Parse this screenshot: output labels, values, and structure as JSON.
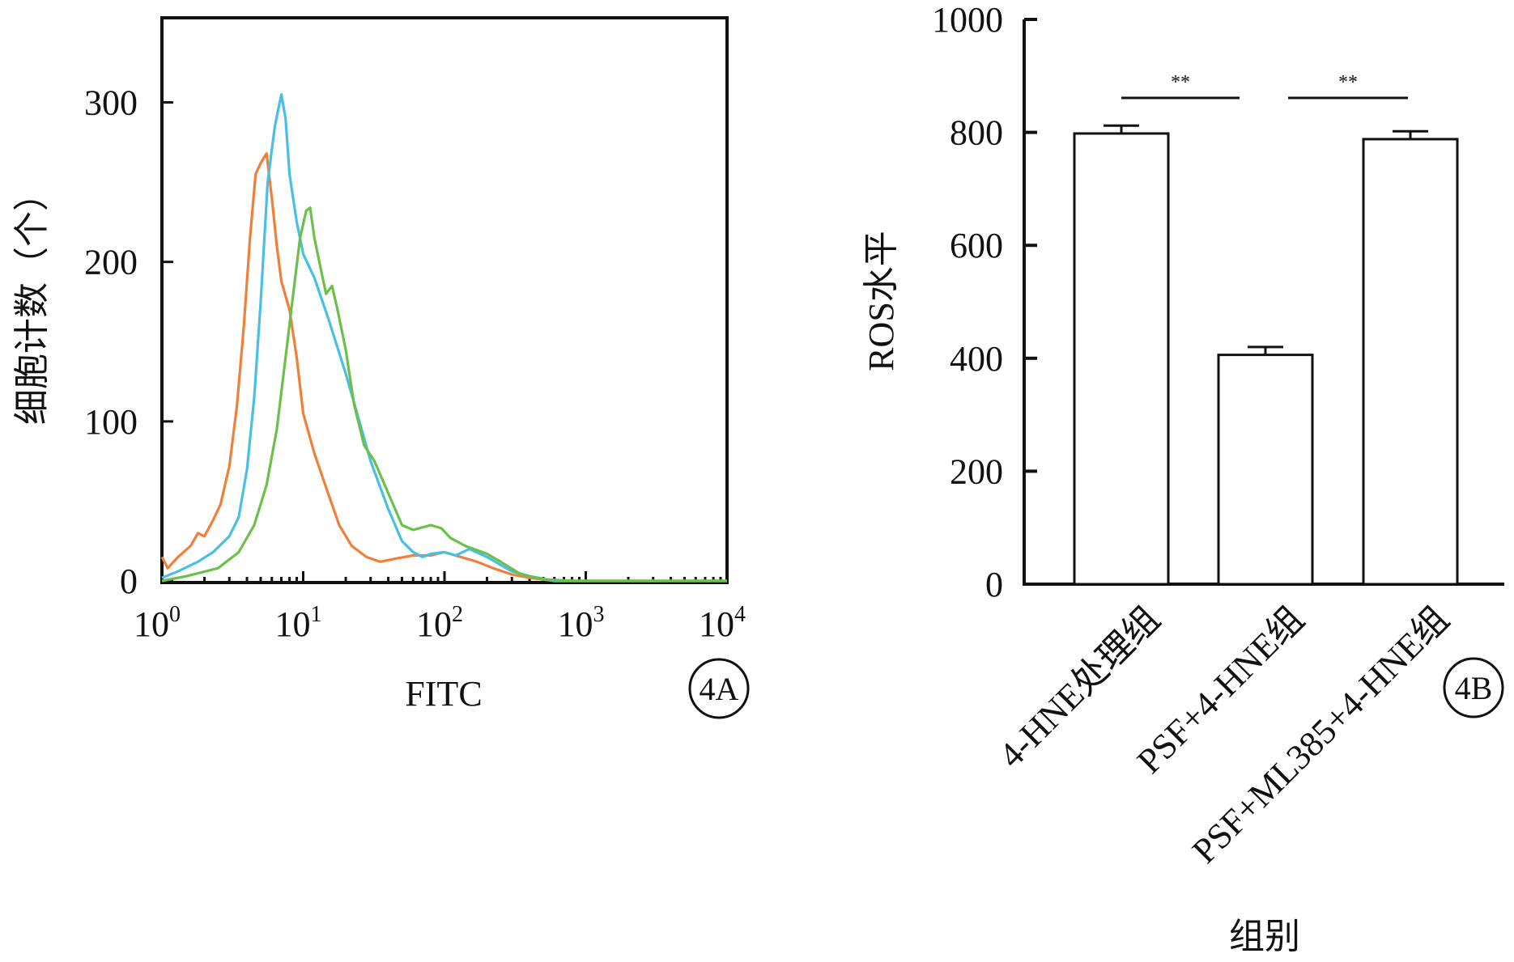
{
  "chart_data": [
    {
      "panel": "4A",
      "type": "line",
      "xscale": "log",
      "xlabel": "FITC",
      "ylabel": "细胞计数（个）",
      "xlim": [
        1,
        10000
      ],
      "ylim": [
        0,
        350
      ],
      "x_tick_labels": [
        {
          "base": "10",
          "exp": "0"
        },
        {
          "base": "10",
          "exp": "1"
        },
        {
          "base": "10",
          "exp": "2"
        },
        {
          "base": "10",
          "exp": "3"
        },
        {
          "base": "10",
          "exp": "4"
        }
      ],
      "y_tick_labels": [
        "0",
        "100",
        "200",
        "300"
      ],
      "series": [
        {
          "color": "#f07f3c",
          "points": [
            [
              1,
              15
            ],
            [
              1.1,
              8
            ],
            [
              1.3,
              15
            ],
            [
              1.6,
              22
            ],
            [
              1.8,
              30
            ],
            [
              2.0,
              28
            ],
            [
              2.3,
              38
            ],
            [
              2.6,
              48
            ],
            [
              3.0,
              72
            ],
            [
              3.4,
              110
            ],
            [
              3.8,
              160
            ],
            [
              4.2,
              215
            ],
            [
              4.6,
              255
            ],
            [
              5.0,
              262
            ],
            [
              5.5,
              268
            ],
            [
              6.0,
              240
            ],
            [
              6.5,
              210
            ],
            [
              7.0,
              188
            ],
            [
              8.0,
              170
            ],
            [
              9.0,
              140
            ],
            [
              10,
              105
            ],
            [
              12,
              80
            ],
            [
              15,
              55
            ],
            [
              18,
              35
            ],
            [
              22,
              22
            ],
            [
              28,
              15
            ],
            [
              35,
              12
            ],
            [
              45,
              14
            ],
            [
              60,
              16
            ],
            [
              80,
              16
            ],
            [
              100,
              18
            ],
            [
              130,
              15
            ],
            [
              170,
              12
            ],
            [
              220,
              8
            ],
            [
              300,
              4
            ],
            [
              400,
              2
            ],
            [
              600,
              0
            ],
            [
              10000,
              0
            ]
          ]
        },
        {
          "color": "#48bfe3",
          "points": [
            [
              1,
              2
            ],
            [
              1.3,
              6
            ],
            [
              1.8,
              12
            ],
            [
              2.3,
              18
            ],
            [
              3.0,
              28
            ],
            [
              3.5,
              40
            ],
            [
              4.0,
              70
            ],
            [
              4.5,
              115
            ],
            [
              5.0,
              175
            ],
            [
              5.6,
              250
            ],
            [
              6.3,
              285
            ],
            [
              7.0,
              305
            ],
            [
              7.5,
              290
            ],
            [
              8.0,
              255
            ],
            [
              9.0,
              225
            ],
            [
              10,
              205
            ],
            [
              12,
              190
            ],
            [
              15,
              165
            ],
            [
              20,
              130
            ],
            [
              25,
              100
            ],
            [
              30,
              75
            ],
            [
              40,
              45
            ],
            [
              50,
              25
            ],
            [
              60,
              18
            ],
            [
              70,
              15
            ],
            [
              80,
              17
            ],
            [
              100,
              18
            ],
            [
              120,
              16
            ],
            [
              150,
              20
            ],
            [
              200,
              15
            ],
            [
              300,
              6
            ],
            [
              400,
              3
            ],
            [
              600,
              0
            ],
            [
              10000,
              0
            ]
          ]
        },
        {
          "color": "#6cc04a",
          "points": [
            [
              1,
              0
            ],
            [
              1.5,
              3
            ],
            [
              2.5,
              8
            ],
            [
              3.5,
              18
            ],
            [
              4.5,
              35
            ],
            [
              5.5,
              60
            ],
            [
              6.5,
              95
            ],
            [
              7.5,
              140
            ],
            [
              8.5,
              180
            ],
            [
              9.5,
              215
            ],
            [
              10.5,
              232
            ],
            [
              11.2,
              234
            ],
            [
              12,
              215
            ],
            [
              13,
              200
            ],
            [
              14.5,
              180
            ],
            [
              16,
              185
            ],
            [
              17.5,
              170
            ],
            [
              20,
              145
            ],
            [
              23,
              110
            ],
            [
              27,
              85
            ],
            [
              32,
              75
            ],
            [
              40,
              55
            ],
            [
              50,
              35
            ],
            [
              60,
              32
            ],
            [
              80,
              35
            ],
            [
              95,
              33
            ],
            [
              110,
              27
            ],
            [
              140,
              22
            ],
            [
              200,
              17
            ],
            [
              250,
              12
            ],
            [
              350,
              4
            ],
            [
              500,
              1
            ],
            [
              800,
              0
            ],
            [
              10000,
              0
            ]
          ]
        }
      ]
    },
    {
      "panel": "4B",
      "type": "bar",
      "xlabel": "组别",
      "ylabel": "ROS水平",
      "ylim": [
        0,
        1000
      ],
      "y_tick_labels": [
        "0",
        "200",
        "400",
        "600",
        "800",
        "1000"
      ],
      "categories": [
        "4-HNE处理组",
        "PSF+4-HNE组",
        "PSF+ML385+4-HNE组"
      ],
      "values": [
        798,
        406,
        788
      ],
      "errors": [
        14,
        14,
        14
      ],
      "significance": [
        {
          "from": 0,
          "to": 1,
          "label": "**"
        },
        {
          "from": 1,
          "to": 2,
          "label": "**"
        }
      ]
    }
  ],
  "panel_labels": [
    "4A",
    "4B"
  ],
  "colors": {
    "axis": "#111111",
    "orange": "#f07f3c",
    "blue": "#48bfe3",
    "green": "#6cc04a",
    "bar_fill": "#ffffff"
  }
}
